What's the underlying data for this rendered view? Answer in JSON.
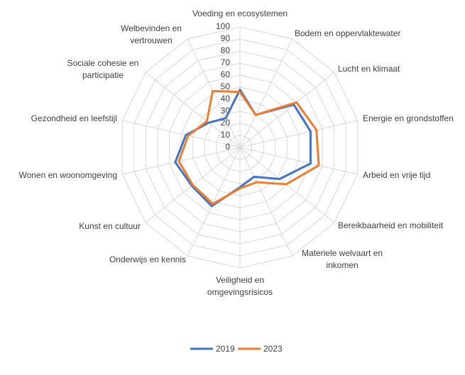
{
  "chart_data": {
    "type": "radar",
    "categories": [
      "Voeding en ecosystemen",
      "Bodem en oppervlaktewater",
      "Lucht en klimaat",
      "Energie en grondstoffen",
      "Arbeid en vrije tijd",
      "Bereikbaarheid en mobiliteit",
      "Materiele welvaart en inkomen",
      "Veiligheid en omgevingsrisicos",
      "Onderwijs en kennis",
      "Kunst en cultuur",
      "Wonen en woonomgeving",
      "Gezondheid en leefstijl",
      "Sociale cohesie en participatie",
      "Welbevinden en vertrouwen"
    ],
    "series": [
      {
        "name": "2019",
        "color": "#4472c4",
        "values": [
          48,
          30,
          57,
          60,
          60,
          42,
          27,
          33,
          54,
          51,
          55,
          46,
          33,
          27
        ]
      },
      {
        "name": "2023",
        "color": "#ed7d31",
        "values": [
          46,
          30,
          60,
          65,
          67,
          49,
          32,
          34,
          52,
          50,
          52,
          44,
          35,
          52
        ]
      }
    ],
    "ylim": [
      0,
      100
    ],
    "yticks": [
      0,
      10,
      20,
      30,
      40,
      50,
      60,
      70,
      80,
      90,
      100
    ],
    "grid": true,
    "legend": "bottom"
  }
}
